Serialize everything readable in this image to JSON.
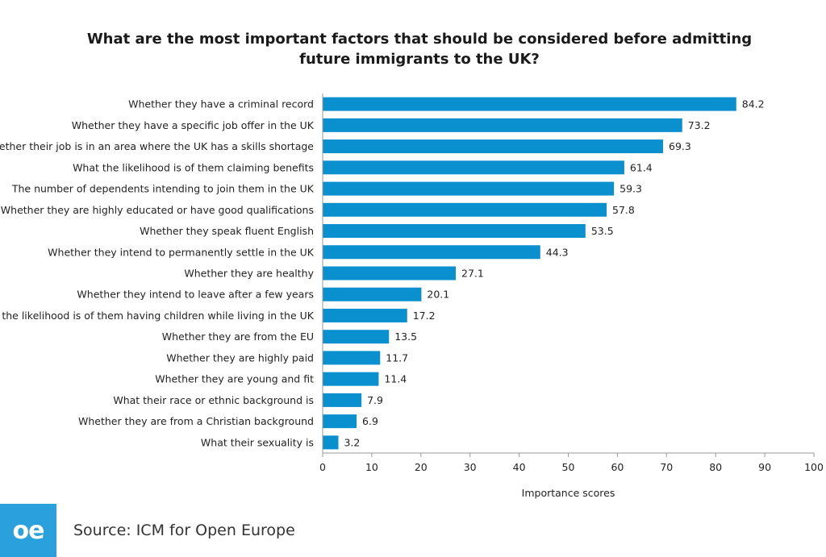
{
  "chart_data": {
    "type": "bar",
    "orientation": "horizontal",
    "title": "What are the most important factors that should be considered before admitting future immigrants to the UK?",
    "xlabel": "Importance scores",
    "ylabel": "",
    "xlim": [
      0,
      100
    ],
    "xticks": [
      0,
      10,
      20,
      30,
      40,
      50,
      60,
      70,
      80,
      90,
      100
    ],
    "grid": false,
    "bar_color": "#0a8fcf",
    "categories": [
      "Whether they have a criminal record",
      "Whether they have a specific job offer in the UK",
      "Whether their job is in an area where the UK has a skills shortage",
      "What the likelihood is of them claiming benefits",
      "The number of dependents intending to join them in the UK",
      "Whether they are highly educated or have good qualifications",
      "Whether they speak fluent English",
      "Whether they intend to permanently settle in the UK",
      "Whether they are healthy",
      "Whether they intend to leave after a few years",
      "What the likelihood is of them having children while living in the UK",
      "Whether they are from the EU",
      "Whether they are highly paid",
      "Whether they are young and fit",
      "What their race or ethnic background is",
      "Whether they are from a Christian background",
      "What their sexuality is"
    ],
    "values": [
      84.2,
      73.2,
      69.3,
      61.4,
      59.3,
      57.8,
      53.5,
      44.3,
      27.1,
      20.1,
      17.2,
      13.5,
      11.7,
      11.4,
      7.9,
      6.9,
      3.2
    ]
  },
  "footer": {
    "logo_text": "oe",
    "logo_color": "#2aa0dc",
    "source": "Source: ICM for Open Europe"
  }
}
